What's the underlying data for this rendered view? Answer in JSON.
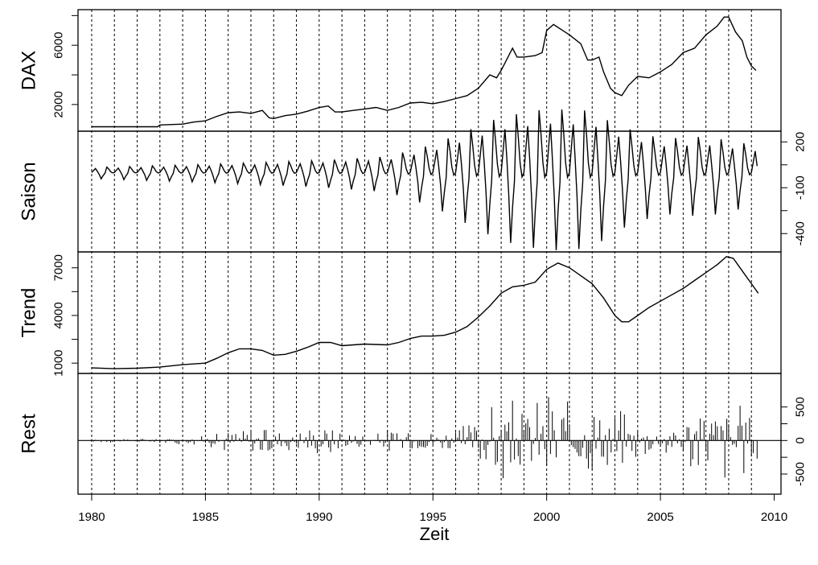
{
  "chart_data": {
    "type": "line",
    "xlabel": "Zeit",
    "x_ticks": [
      1980,
      1985,
      1990,
      1995,
      2000,
      2005,
      2010
    ],
    "x_range": [
      1979.4,
      2010.3
    ],
    "grid": "vertical dotted lines at yearly intervals 1980-2009",
    "panels": [
      {
        "name": "DAX",
        "label": "DAX",
        "axis_side": "left",
        "ylim": [
          200,
          8400
        ],
        "ticks": [
          2000,
          6000
        ],
        "tick_labels": [
          "2000",
          "6000"
        ],
        "minor_ticks": [
          4000,
          8000
        ],
        "points": [
          [
            1980.0,
            500
          ],
          [
            1982.9,
            500
          ],
          [
            1983.0,
            620
          ],
          [
            1984.0,
            680
          ],
          [
            1984.5,
            820
          ],
          [
            1985.0,
            900
          ],
          [
            1985.5,
            1200
          ],
          [
            1986.0,
            1450
          ],
          [
            1986.5,
            1500
          ],
          [
            1987.0,
            1400
          ],
          [
            1987.5,
            1600
          ],
          [
            1987.8,
            1100
          ],
          [
            1988.0,
            1050
          ],
          [
            1988.5,
            1250
          ],
          [
            1989.0,
            1350
          ],
          [
            1989.5,
            1550
          ],
          [
            1990.0,
            1800
          ],
          [
            1990.4,
            1900
          ],
          [
            1990.7,
            1500
          ],
          [
            1991.0,
            1500
          ],
          [
            1991.5,
            1600
          ],
          [
            1992.0,
            1700
          ],
          [
            1992.5,
            1800
          ],
          [
            1993.0,
            1600
          ],
          [
            1993.5,
            1800
          ],
          [
            1994.0,
            2100
          ],
          [
            1994.5,
            2150
          ],
          [
            1995.0,
            2050
          ],
          [
            1995.5,
            2200
          ],
          [
            1996.0,
            2400
          ],
          [
            1996.5,
            2600
          ],
          [
            1997.0,
            3100
          ],
          [
            1997.5,
            4000
          ],
          [
            1997.8,
            3800
          ],
          [
            1998.0,
            4300
          ],
          [
            1998.5,
            5800
          ],
          [
            1998.7,
            5200
          ],
          [
            1999.0,
            5200
          ],
          [
            1999.5,
            5300
          ],
          [
            1999.8,
            5500
          ],
          [
            2000.0,
            7000
          ],
          [
            2000.3,
            7400
          ],
          [
            2000.7,
            7000
          ],
          [
            2001.0,
            6700
          ],
          [
            2001.5,
            6100
          ],
          [
            2001.8,
            5000
          ],
          [
            2002.0,
            5000
          ],
          [
            2002.3,
            5200
          ],
          [
            2002.5,
            4200
          ],
          [
            2002.8,
            3100
          ],
          [
            2003.0,
            2800
          ],
          [
            2003.3,
            2600
          ],
          [
            2003.6,
            3300
          ],
          [
            2004.0,
            3900
          ],
          [
            2004.5,
            3800
          ],
          [
            2005.0,
            4200
          ],
          [
            2005.5,
            4700
          ],
          [
            2006.0,
            5500
          ],
          [
            2006.5,
            5800
          ],
          [
            2007.0,
            6700
          ],
          [
            2007.5,
            7300
          ],
          [
            2007.8,
            7900
          ],
          [
            2008.0,
            7900
          ],
          [
            2008.3,
            6900
          ],
          [
            2008.6,
            6300
          ],
          [
            2008.8,
            5200
          ],
          [
            2009.0,
            4600
          ],
          [
            2009.2,
            4300
          ]
        ]
      },
      {
        "name": "Saison",
        "label": "Saison",
        "axis_side": "right",
        "ylim": [
          -520,
          270
        ],
        "ticks": [
          200,
          -100,
          -400
        ],
        "tick_labels": [
          "200",
          "-100",
          "-400"
        ],
        "minor_ticks": [
          50,
          -250
        ],
        "season_pattern": [
          0.0,
          0.5,
          1.0,
          0.3,
          -0.5,
          -1.6,
          -0.8,
          -0.2,
          1.3,
          0.8,
          0.2,
          -0.1
        ],
        "amplitude": [
          [
            1980,
            25
          ],
          [
            1985,
            40
          ],
          [
            1990,
            60
          ],
          [
            1993,
            80
          ],
          [
            1995,
            140
          ],
          [
            1998,
            280
          ],
          [
            2000,
            320
          ],
          [
            2002,
            310
          ],
          [
            2003,
            240
          ],
          [
            2005,
            170
          ],
          [
            2007,
            180
          ],
          [
            2009,
            140
          ]
        ]
      },
      {
        "name": "Trend",
        "label": "Trend",
        "axis_side": "left",
        "ylim": [
          350,
          8000
        ],
        "ticks": [
          1000,
          4000,
          7000
        ],
        "tick_labels": [
          "1000",
          "4000",
          "7000"
        ],
        "minor_ticks": [
          2500,
          5500
        ],
        "points": [
          [
            1980.0,
            700
          ],
          [
            1981.0,
            650
          ],
          [
            1982.0,
            680
          ],
          [
            1983.0,
            750
          ],
          [
            1984.0,
            900
          ],
          [
            1985.0,
            1000
          ],
          [
            1985.5,
            1300
          ],
          [
            1986.0,
            1650
          ],
          [
            1986.5,
            1900
          ],
          [
            1987.0,
            1900
          ],
          [
            1987.5,
            1800
          ],
          [
            1988.0,
            1500
          ],
          [
            1988.5,
            1550
          ],
          [
            1989.0,
            1750
          ],
          [
            1989.5,
            2000
          ],
          [
            1990.0,
            2300
          ],
          [
            1990.5,
            2300
          ],
          [
            1991.0,
            2100
          ],
          [
            1991.5,
            2150
          ],
          [
            1992.0,
            2200
          ],
          [
            1993.0,
            2150
          ],
          [
            1993.5,
            2300
          ],
          [
            1994.0,
            2550
          ],
          [
            1994.5,
            2700
          ],
          [
            1995.0,
            2700
          ],
          [
            1995.5,
            2750
          ],
          [
            1996.0,
            2950
          ],
          [
            1996.5,
            3300
          ],
          [
            1997.0,
            3900
          ],
          [
            1997.5,
            4600
          ],
          [
            1998.0,
            5400
          ],
          [
            1998.5,
            5800
          ],
          [
            1999.0,
            5900
          ],
          [
            1999.5,
            6100
          ],
          [
            2000.0,
            6900
          ],
          [
            2000.5,
            7300
          ],
          [
            2001.0,
            7000
          ],
          [
            2001.5,
            6500
          ],
          [
            2002.0,
            6000
          ],
          [
            2002.5,
            5100
          ],
          [
            2003.0,
            4000
          ],
          [
            2003.3,
            3600
          ],
          [
            2003.6,
            3600
          ],
          [
            2004.0,
            4000
          ],
          [
            2004.5,
            4500
          ],
          [
            2005.0,
            4900
          ],
          [
            2005.5,
            5300
          ],
          [
            2006.0,
            5700
          ],
          [
            2006.5,
            6200
          ],
          [
            2007.0,
            6700
          ],
          [
            2007.5,
            7200
          ],
          [
            2007.9,
            7700
          ],
          [
            2008.2,
            7600
          ],
          [
            2008.6,
            6800
          ],
          [
            2009.0,
            6000
          ],
          [
            2009.3,
            5400
          ]
        ]
      },
      {
        "name": "Rest",
        "label": "Rest",
        "axis_side": "right",
        "ylim": [
          -800,
          1000
        ],
        "ticks": [
          500,
          0,
          -500
        ],
        "tick_labels": [
          "500",
          "0",
          "-500"
        ],
        "minor_ticks": [
          250,
          -250
        ],
        "envelope": [
          [
            1980,
            30
          ],
          [
            1983,
            40
          ],
          [
            1985,
            90
          ],
          [
            1986,
            200
          ],
          [
            1987.5,
            300
          ],
          [
            1989,
            150
          ],
          [
            1990,
            300
          ],
          [
            1992,
            150
          ],
          [
            1994,
            250
          ],
          [
            1995,
            180
          ],
          [
            1996,
            220
          ],
          [
            1997,
            400
          ],
          [
            1998,
            700
          ],
          [
            1999,
            600
          ],
          [
            2000,
            850
          ],
          [
            2001,
            700
          ],
          [
            2002,
            650
          ],
          [
            2003,
            600
          ],
          [
            2004,
            300
          ],
          [
            2005,
            250
          ],
          [
            2006,
            450
          ],
          [
            2007,
            700
          ],
          [
            2008,
            750
          ],
          [
            2009,
            500
          ]
        ]
      }
    ]
  }
}
